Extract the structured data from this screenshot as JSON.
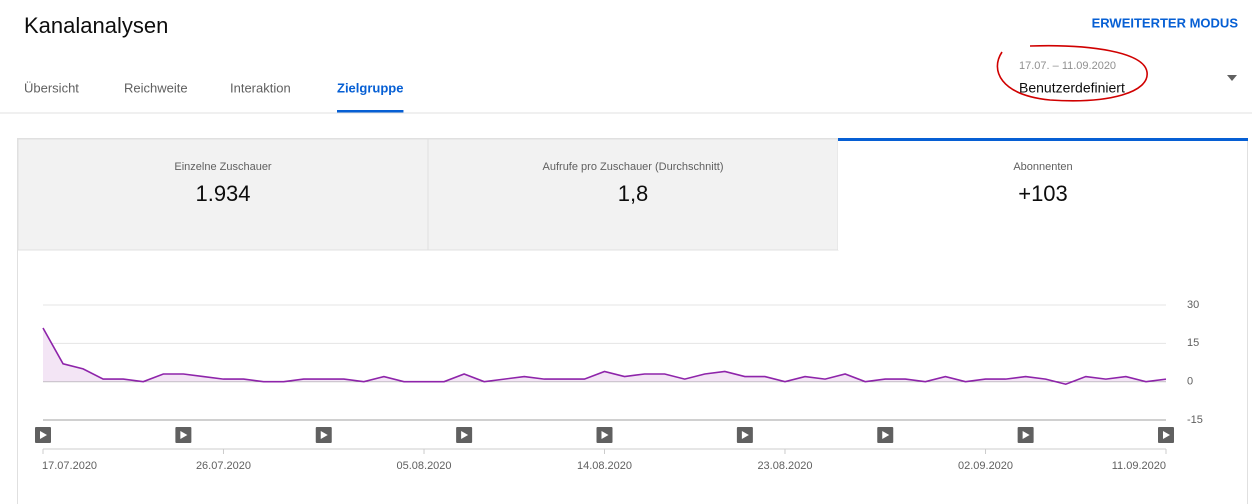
{
  "header": {
    "title": "Kanalanalysen",
    "mode_button": "ERWEITERTER MODUS",
    "tabs": [
      "Übersicht",
      "Reichweite",
      "Interaktion",
      "Zielgruppe"
    ],
    "active_tab": 3,
    "date_range": "17.07. – 11.09.2020",
    "date_preset": "Benutzerdefiniert"
  },
  "metrics": [
    {
      "label": "Einzelne Zuschauer",
      "value": "1.934"
    },
    {
      "label": "Aufrufe pro Zuschauer (Durchschnitt)",
      "value": "1,8"
    },
    {
      "label": "Abonnenten",
      "value": "+103"
    }
  ],
  "chart_data": {
    "type": "line",
    "color": "#8e24aa",
    "area_color": "#f3e5f5",
    "grid": true,
    "x": [
      "17.07.2020",
      "18.07.2020",
      "19.07.2020",
      "20.07.2020",
      "21.07.2020",
      "22.07.2020",
      "23.07.2020",
      "24.07.2020",
      "25.07.2020",
      "26.07.2020",
      "27.07.2020",
      "28.07.2020",
      "29.07.2020",
      "30.07.2020",
      "31.07.2020",
      "01.08.2020",
      "02.08.2020",
      "03.08.2020",
      "04.08.2020",
      "05.08.2020",
      "06.08.2020",
      "07.08.2020",
      "08.08.2020",
      "09.08.2020",
      "10.08.2020",
      "11.08.2020",
      "12.08.2020",
      "13.08.2020",
      "14.08.2020",
      "15.08.2020",
      "16.08.2020",
      "17.08.2020",
      "18.08.2020",
      "19.08.2020",
      "20.08.2020",
      "21.08.2020",
      "22.08.2020",
      "23.08.2020",
      "24.08.2020",
      "25.08.2020",
      "26.08.2020",
      "27.08.2020",
      "28.08.2020",
      "29.08.2020",
      "30.08.2020",
      "31.08.2020",
      "01.09.2020",
      "02.09.2020",
      "03.09.2020",
      "04.09.2020",
      "05.09.2020",
      "06.09.2020",
      "07.09.2020",
      "08.09.2020",
      "09.09.2020",
      "10.09.2020",
      "11.09.2020"
    ],
    "values": [
      21,
      7,
      5,
      1,
      1,
      0,
      3,
      3,
      2,
      1,
      1,
      0,
      0,
      1,
      1,
      1,
      0,
      2,
      0,
      0,
      0,
      3,
      0,
      1,
      2,
      1,
      1,
      1,
      4,
      2,
      3,
      3,
      1,
      3,
      4,
      2,
      2,
      0,
      2,
      1,
      3,
      0,
      1,
      1,
      0,
      2,
      0,
      1,
      1,
      2,
      1,
      -1,
      2,
      1,
      2,
      0,
      1
    ],
    "xticks": [
      "17.07.2020",
      "26.07.2020",
      "05.08.2020",
      "14.08.2020",
      "23.08.2020",
      "02.09.2020",
      "11.09.2020"
    ],
    "ylim": [
      -15,
      30
    ],
    "yticks": [
      30,
      15,
      0,
      -15
    ]
  }
}
